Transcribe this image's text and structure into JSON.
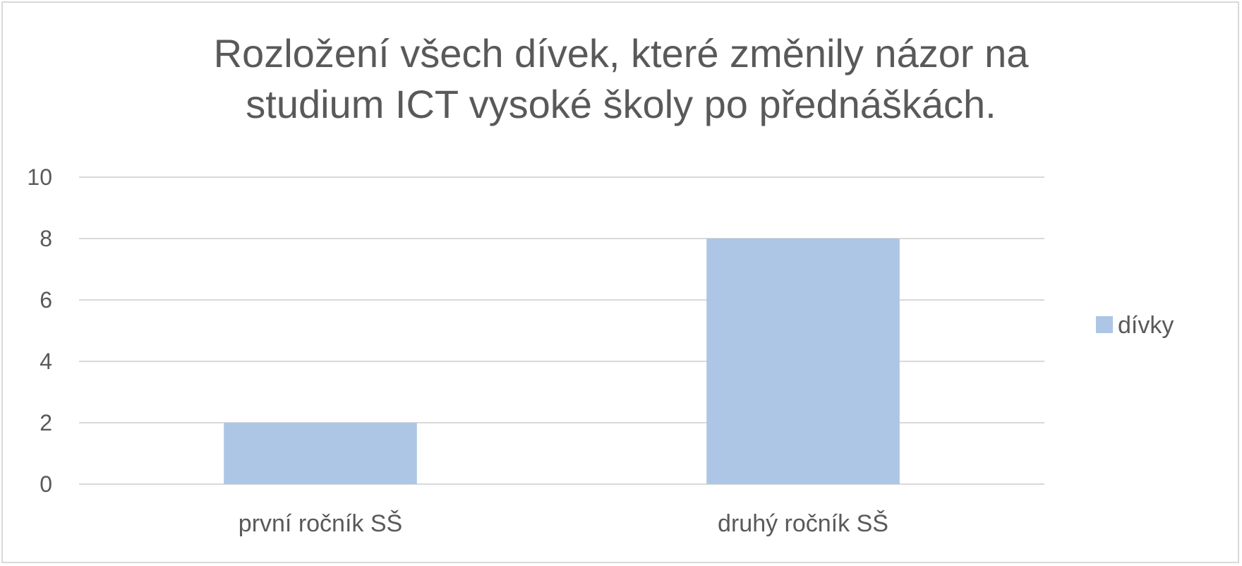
{
  "chart_data": {
    "type": "bar",
    "title_lines": [
      "Rozložení všech dívek, které změnily názor na",
      "studium ICT vysoké školy po přednáškách."
    ],
    "categories": [
      "první ročník SŠ",
      "druhý ročník SŠ"
    ],
    "series": [
      {
        "name": "dívky",
        "values": [
          2,
          8
        ],
        "color": "#adc6e6"
      }
    ],
    "ylim": [
      0,
      10
    ],
    "yticks": [
      "0",
      "2",
      "4",
      "6",
      "8",
      "10"
    ],
    "grid": true,
    "gridline_color": "#d9d9d9",
    "legend_position": "right",
    "text_color": "#595959"
  }
}
